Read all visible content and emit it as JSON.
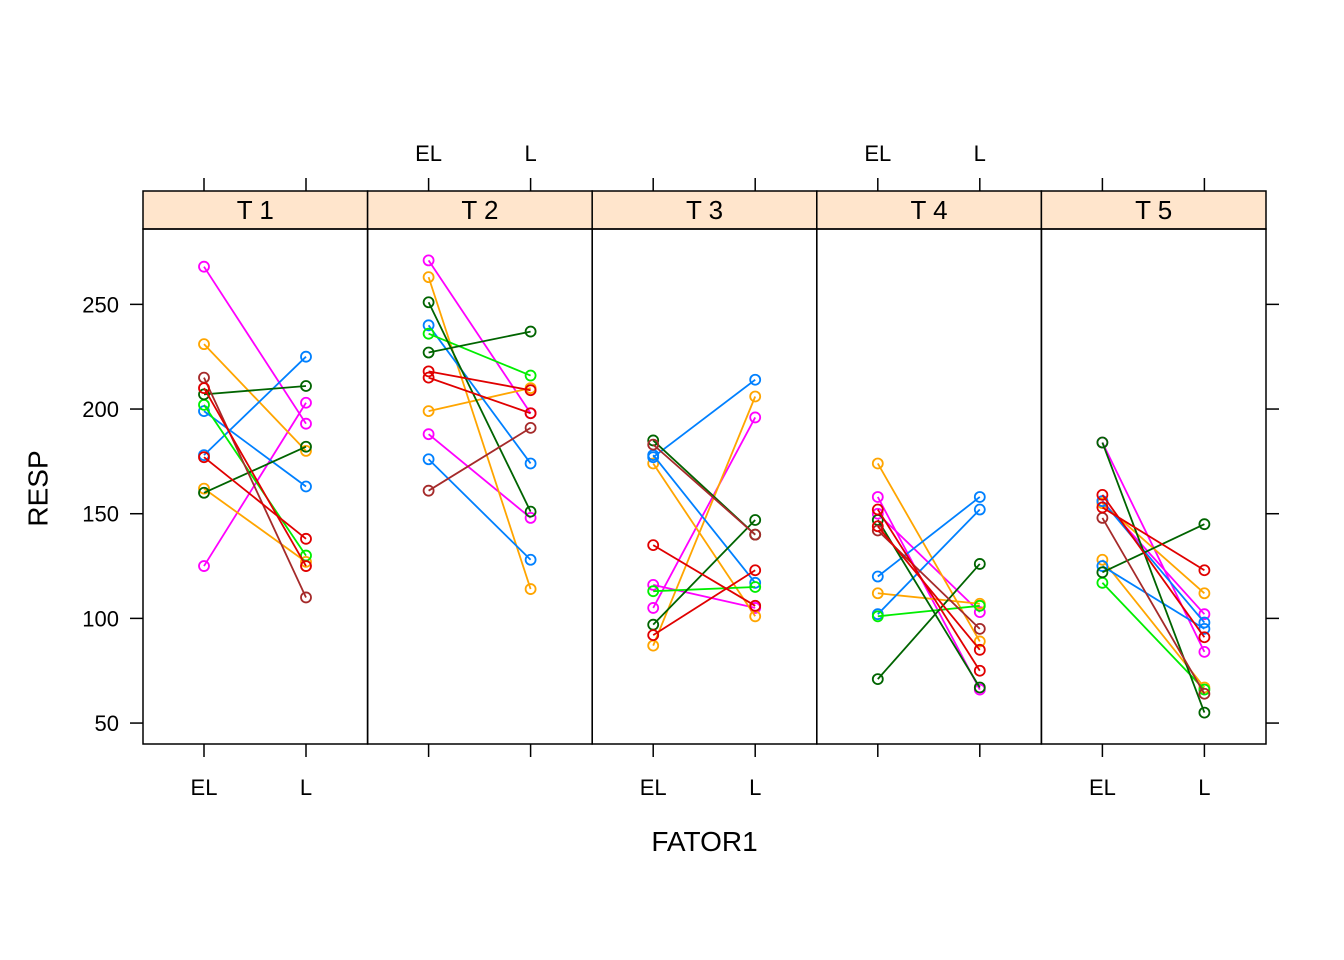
{
  "chart_data": {
    "type": "line",
    "xlabel": "FATOR1",
    "ylabel": "RESP",
    "categories": [
      "EL",
      "L"
    ],
    "ylim": [
      40,
      286
    ],
    "yticks": [
      50,
      100,
      150,
      200,
      250
    ],
    "grid": false,
    "strip_color": "#FFE5CC",
    "panels": [
      {
        "title": "T 1",
        "series": [
          {
            "color": "#FF00FF",
            "values": [
              268,
              193
            ]
          },
          {
            "color": "#FF00FF",
            "values": [
              125,
              203
            ]
          },
          {
            "color": "#FFA500",
            "values": [
              231,
              180
            ]
          },
          {
            "color": "#FFA500",
            "values": [
              162,
              127
            ]
          },
          {
            "color": "#0080FF",
            "values": [
              199,
              163
            ]
          },
          {
            "color": "#0080FF",
            "values": [
              178,
              225
            ]
          },
          {
            "color": "#00EE00",
            "values": [
              202,
              130
            ]
          },
          {
            "color": "#006400",
            "values": [
              207,
              211
            ]
          },
          {
            "color": "#006400",
            "values": [
              160,
              182
            ]
          },
          {
            "color": "#A52A2A",
            "values": [
              215,
              110
            ]
          },
          {
            "color": "#E00000",
            "values": [
              210,
              125
            ]
          },
          {
            "color": "#E00000",
            "values": [
              177,
              138
            ]
          }
        ]
      },
      {
        "title": "T 2",
        "series": [
          {
            "color": "#FF00FF",
            "values": [
              271,
              198
            ]
          },
          {
            "color": "#FF00FF",
            "values": [
              188,
              148
            ]
          },
          {
            "color": "#FFA500",
            "values": [
              263,
              114
            ]
          },
          {
            "color": "#FFA500",
            "values": [
              199,
              210
            ]
          },
          {
            "color": "#0080FF",
            "values": [
              240,
              174
            ]
          },
          {
            "color": "#0080FF",
            "values": [
              176,
              128
            ]
          },
          {
            "color": "#00EE00",
            "values": [
              236,
              216
            ]
          },
          {
            "color": "#006400",
            "values": [
              251,
              151
            ]
          },
          {
            "color": "#006400",
            "values": [
              227,
              237
            ]
          },
          {
            "color": "#A52A2A",
            "values": [
              161,
              191
            ]
          },
          {
            "color": "#E00000",
            "values": [
              218,
              209
            ]
          },
          {
            "color": "#E00000",
            "values": [
              215,
              198
            ]
          }
        ]
      },
      {
        "title": "T 3",
        "series": [
          {
            "color": "#FF00FF",
            "values": [
              116,
              105
            ]
          },
          {
            "color": "#FF00FF",
            "values": [
              105,
              196
            ]
          },
          {
            "color": "#FFA500",
            "values": [
              174,
              101
            ]
          },
          {
            "color": "#FFA500",
            "values": [
              87,
              206
            ]
          },
          {
            "color": "#0080FF",
            "values": [
              178,
              117
            ]
          },
          {
            "color": "#0080FF",
            "values": [
              177,
              214
            ]
          },
          {
            "color": "#00EE00",
            "values": [
              113,
              115
            ]
          },
          {
            "color": "#006400",
            "values": [
              185,
              140
            ]
          },
          {
            "color": "#006400",
            "values": [
              97,
              147
            ]
          },
          {
            "color": "#A52A2A",
            "values": [
              183,
              140
            ]
          },
          {
            "color": "#E00000",
            "values": [
              135,
              106
            ]
          },
          {
            "color": "#E00000",
            "values": [
              92,
              123
            ]
          }
        ]
      },
      {
        "title": "T 4",
        "series": [
          {
            "color": "#FF00FF",
            "values": [
              158,
              66
            ]
          },
          {
            "color": "#FF00FF",
            "values": [
              150,
              103
            ]
          },
          {
            "color": "#FFA500",
            "values": [
              174,
              89
            ]
          },
          {
            "color": "#FFA500",
            "values": [
              112,
              107
            ]
          },
          {
            "color": "#0080FF",
            "values": [
              120,
              158
            ]
          },
          {
            "color": "#0080FF",
            "values": [
              102,
              152
            ]
          },
          {
            "color": "#00EE00",
            "values": [
              101,
              106
            ]
          },
          {
            "color": "#006400",
            "values": [
              71,
              126
            ]
          },
          {
            "color": "#006400",
            "values": [
              147,
              67
            ]
          },
          {
            "color": "#A52A2A",
            "values": [
              142,
              95
            ]
          },
          {
            "color": "#E00000",
            "values": [
              152,
              75
            ]
          },
          {
            "color": "#E00000",
            "values": [
              144,
              85
            ]
          }
        ]
      },
      {
        "title": "T 5",
        "series": [
          {
            "color": "#FF00FF",
            "values": [
              184,
              84
            ]
          },
          {
            "color": "#FF00FF",
            "values": [
              156,
              102
            ]
          },
          {
            "color": "#FFA500",
            "values": [
              155,
              112
            ]
          },
          {
            "color": "#FFA500",
            "values": [
              128,
              67
            ]
          },
          {
            "color": "#0080FF",
            "values": [
              156,
              98
            ]
          },
          {
            "color": "#0080FF",
            "values": [
              125,
              95
            ]
          },
          {
            "color": "#00EE00",
            "values": [
              117,
              66
            ]
          },
          {
            "color": "#006400",
            "values": [
              184,
              55
            ]
          },
          {
            "color": "#006400",
            "values": [
              122,
              145
            ]
          },
          {
            "color": "#A52A2A",
            "values": [
              148,
              64
            ]
          },
          {
            "color": "#E00000",
            "values": [
              159,
              91
            ]
          },
          {
            "color": "#E00000",
            "values": [
              153,
              123
            ]
          }
        ]
      }
    ]
  }
}
